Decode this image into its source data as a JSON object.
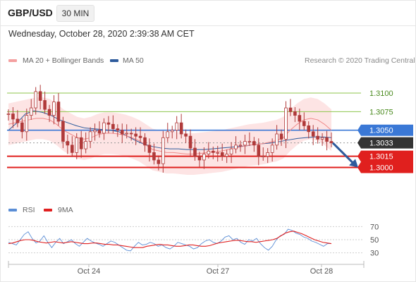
{
  "header": {
    "pair": "GBP/USD",
    "timeframe": "30 MIN",
    "datetime": "Wednesday, October 28, 2020 2:39:38 AM CET"
  },
  "legend": {
    "ma20_bb": "MA 20 + Bollinger Bands",
    "ma50": "MA 50",
    "credit": "Research © 2020 Trading Central",
    "rsi": "RSI",
    "ma9": "9MA"
  },
  "colors": {
    "bollinger_fill": "#fde1e1",
    "ma20": "#f08a8a",
    "ma50": "#2e5b9c",
    "candle": "#b03a3a",
    "support": "#e0201e",
    "resistance_blue": "#3a78d6",
    "green_level": "#8dc64b",
    "last_price": "#333333",
    "rsi": "#5b8ed6",
    "rsi_ma": "#e02020"
  },
  "chart_data": [
    {
      "type": "line",
      "title": "GBP/USD 30 MIN price chart",
      "x_ticks": [
        "Oct 24",
        "Oct 27",
        "Oct 28"
      ],
      "ylim": [
        1.2955,
        1.3135
      ],
      "horizontal_levels": [
        {
          "value": 1.31,
          "label": "1.3100",
          "style": "green"
        },
        {
          "value": 1.3075,
          "label": "1.3075",
          "style": "green"
        },
        {
          "value": 1.305,
          "label": "1.3050",
          "style": "blue"
        },
        {
          "value": 1.3033,
          "label": "1.3033",
          "style": "last"
        },
        {
          "value": 1.3015,
          "label": "1.3015",
          "style": "red"
        },
        {
          "value": 1.3,
          "label": "1.3000",
          "style": "red"
        }
      ],
      "forecast_arrow": {
        "from": 1.3033,
        "to": 1.3
      },
      "series": [
        {
          "name": "Close",
          "values": [
            1.3072,
            1.3065,
            1.306,
            1.3048,
            1.307,
            1.308,
            1.3102,
            1.309,
            1.3078,
            1.307,
            1.3088,
            1.3062,
            1.3035,
            1.303,
            1.302,
            1.304,
            1.3025,
            1.3035,
            1.3048,
            1.305,
            1.3046,
            1.306,
            1.3058,
            1.3052,
            1.305,
            1.3045,
            1.3046,
            1.3045,
            1.3042,
            1.304,
            1.303,
            1.302,
            1.301,
            1.3005,
            1.304,
            1.3048,
            1.305,
            1.306,
            1.3045,
            1.3042,
            1.3026,
            1.3015,
            1.301,
            1.3018,
            1.3022,
            1.302,
            1.302,
            1.3015,
            1.3018,
            1.3025,
            1.303,
            1.303,
            1.3035,
            1.3035,
            1.303,
            1.3015,
            1.3015,
            1.302,
            1.303,
            1.3045,
            1.3038,
            1.308,
            1.3075,
            1.307,
            1.3062,
            1.3056,
            1.3048,
            1.3042,
            1.3038,
            1.304,
            1.3035,
            1.3033
          ]
        },
        {
          "name": "MA 20",
          "values": [
            1.3058,
            1.306,
            1.3062,
            1.3064,
            1.3066,
            1.3066,
            1.3064,
            1.3058,
            1.305,
            1.3045,
            1.304,
            1.3038,
            1.304,
            1.3044,
            1.3046,
            1.3046,
            1.3045,
            1.3043,
            1.304,
            1.3036,
            1.303,
            1.3024,
            1.3022,
            1.302,
            1.302,
            1.3019,
            1.3018,
            1.3018,
            1.3019,
            1.302,
            1.3021,
            1.3022,
            1.3024,
            1.3026,
            1.3028,
            1.303,
            1.3031,
            1.3032,
            1.3034,
            1.3036,
            1.304,
            1.305,
            1.3058,
            1.3064,
            1.3066,
            1.3064,
            1.3058,
            1.305
          ]
        },
        {
          "name": "MA 50",
          "values": [
            1.305,
            1.306,
            1.3072,
            1.3076,
            1.3074,
            1.307,
            1.3064,
            1.306,
            1.3056,
            1.3053,
            1.3052,
            1.3051,
            1.305,
            1.3048,
            1.3042,
            1.3036,
            1.3031,
            1.3028,
            1.3026,
            1.3025,
            1.3025,
            1.3024,
            1.3024,
            1.3024,
            1.3025,
            1.3026,
            1.3027,
            1.3028,
            1.3029,
            1.3031,
            1.3032,
            1.3033,
            1.3035,
            1.3037,
            1.3039,
            1.304,
            1.3041,
            1.3041,
            1.304
          ]
        }
      ]
    },
    {
      "type": "line",
      "title": "RSI",
      "ylim": [
        20,
        80
      ],
      "y_ticks": [
        70,
        50,
        30
      ],
      "series": [
        {
          "name": "RSI",
          "values": [
            46,
            44,
            42,
            50,
            58,
            62,
            52,
            45,
            48,
            56,
            46,
            38,
            46,
            52,
            44,
            47,
            50,
            44,
            40,
            46,
            52,
            48,
            45,
            43,
            40,
            44,
            48,
            46,
            42,
            38,
            34,
            33,
            40,
            46,
            42,
            43,
            46,
            44,
            40,
            42,
            38,
            36,
            40,
            46,
            44,
            42,
            40,
            36,
            38,
            44,
            48,
            50,
            46,
            44,
            48,
            54,
            56,
            50,
            52,
            46,
            43,
            50,
            48,
            52,
            44,
            38,
            34,
            40,
            50,
            56,
            58,
            66,
            64,
            60,
            58,
            54,
            52,
            48,
            46,
            43,
            40,
            44,
            44
          ]
        },
        {
          "name": "9MA",
          "values": [
            44,
            45,
            47,
            49,
            50,
            50,
            49,
            47,
            46,
            45,
            46,
            47,
            46,
            45,
            46,
            47,
            46,
            45,
            44,
            44,
            45,
            45,
            44,
            43,
            43,
            42,
            42,
            41,
            40,
            39,
            38,
            38,
            38,
            40,
            41,
            42,
            43,
            42,
            42,
            41,
            40,
            40,
            41,
            42,
            42,
            41,
            40,
            40,
            41,
            43,
            45,
            46,
            47,
            48,
            49,
            49,
            48,
            47,
            47,
            46,
            47,
            48,
            49,
            50,
            52,
            56,
            60,
            62,
            63,
            61,
            59,
            56,
            53,
            50,
            48,
            46,
            45,
            44
          ]
        }
      ]
    }
  ]
}
